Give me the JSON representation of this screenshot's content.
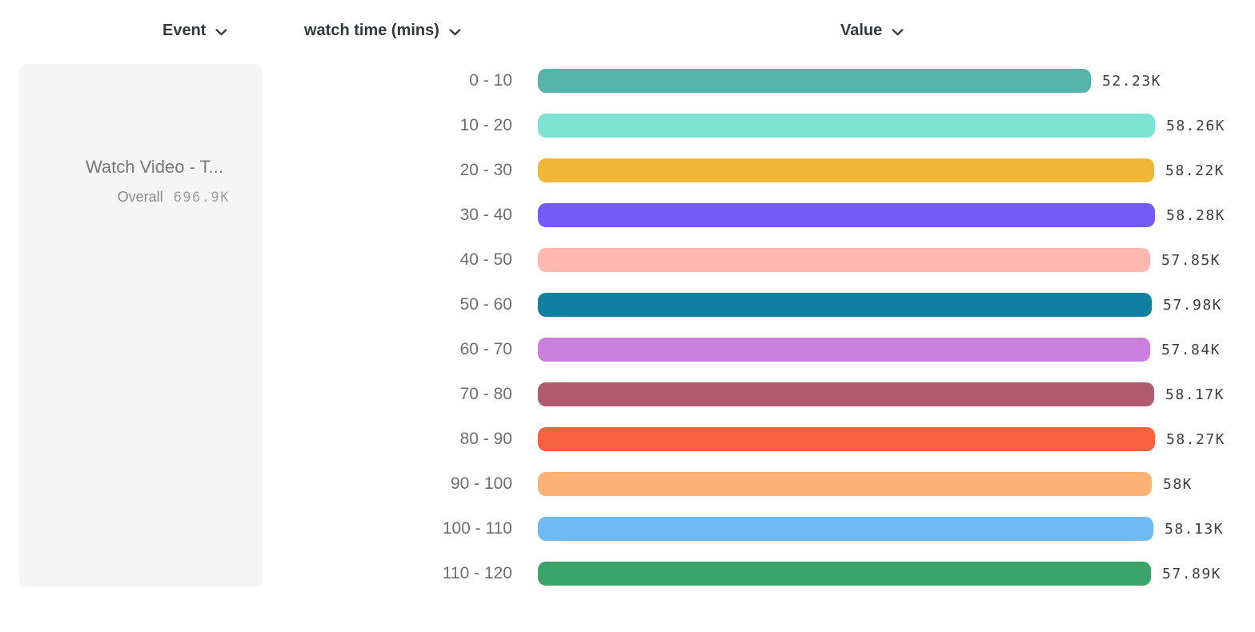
{
  "columns": [
    {
      "id": "event",
      "label": "Event",
      "icon": "chevron-down"
    },
    {
      "id": "breakdown",
      "label": "watch time (mins)",
      "icon": "chevron-down"
    },
    {
      "id": "value",
      "label": "Value",
      "icon": "chevron-down"
    }
  ],
  "event_card": {
    "name": "Watch Video - T...",
    "overall_label": "Overall",
    "overall_value": "696.9K"
  },
  "chart_data": {
    "type": "bar",
    "orientation": "horizontal",
    "title": "",
    "xlabel": "Value",
    "ylabel": "watch time (mins)",
    "xlim": [
      0,
      58280
    ],
    "grid": false,
    "categories": [
      "0 - 10",
      "10 - 20",
      "20 - 30",
      "30 - 40",
      "40 - 50",
      "50 - 60",
      "60 - 70",
      "70 - 80",
      "80 - 90",
      "90 - 100",
      "100 - 110",
      "110 - 120"
    ],
    "values": [
      52230,
      58260,
      58220,
      58280,
      57850,
      57980,
      57840,
      58170,
      58270,
      58000,
      58130,
      57890
    ],
    "value_labels": [
      "52.23K",
      "58.26K",
      "58.22K",
      "58.28K",
      "57.85K",
      "57.98K",
      "57.84K",
      "58.17K",
      "58.27K",
      "58K",
      "58.13K",
      "57.89K"
    ],
    "colors": [
      "#56B3AC",
      "#7EE2D5",
      "#F2B637",
      "#745AF7",
      "#FDB9AF",
      "#117FA0",
      "#CA80DC",
      "#B25A6E",
      "#F8613E",
      "#FBB274",
      "#6FB9F5",
      "#3BA46A"
    ],
    "legend": {
      "series_name": "Watch Video - T...",
      "overall": "696.9K",
      "position": "left"
    }
  },
  "ui_colors": {
    "header_text": "#33383d",
    "category_text": "#6b6e71",
    "value_text": "#3b3e41",
    "card_background": "#f5f5f6",
    "card_name_text": "#75777a",
    "card_overall_text": "#9b9ea1"
  }
}
